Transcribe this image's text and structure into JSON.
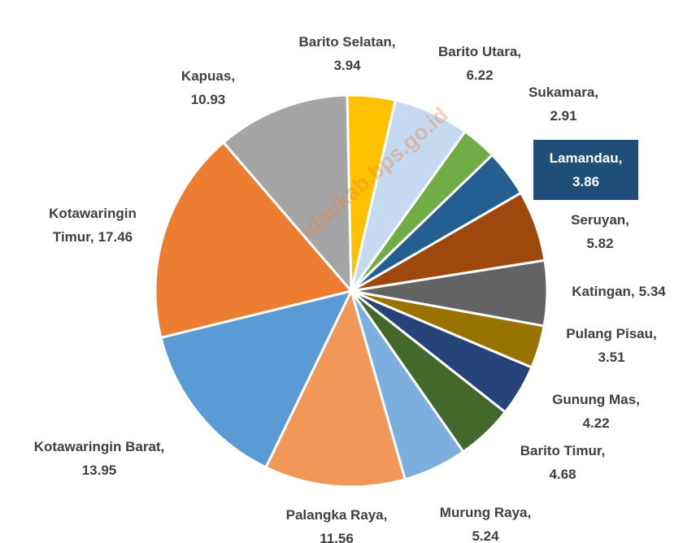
{
  "chart_data": {
    "type": "pie",
    "watermark": "https://lamandaukab.bps.go.id",
    "categories": [
      "Barito Selatan,",
      "Barito Utara,",
      "Sukamara,",
      "Lamandau,",
      "Seruyan,",
      "Katingan,",
      "Pulang Pisau,",
      "Gunung Mas,",
      "Barito Timur,",
      "Murung Raya,",
      "Palangka Raya,",
      "Kotawaringin Barat,",
      "Kotawaringin Timur,",
      "Kapuas,"
    ],
    "values": [
      3.94,
      6.22,
      2.91,
      3.86,
      5.82,
      5.34,
      3.51,
      4.22,
      4.68,
      5.24,
      11.56,
      13.95,
      17.46,
      10.93
    ],
    "colors": [
      "#ffc000",
      "#c5d9f1",
      "#70ad47",
      "#255e91",
      "#9e480e",
      "#636363",
      "#997300",
      "#264478",
      "#43682b",
      "#7cafdd",
      "#f1975a",
      "#5b9bd5",
      "#ed7d31",
      "#a5a5a5"
    ],
    "highlight": 3,
    "highlight_color": "#1f4e79"
  }
}
